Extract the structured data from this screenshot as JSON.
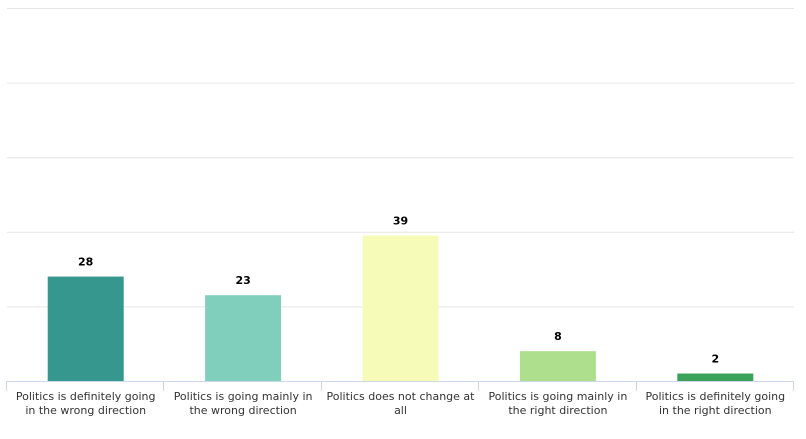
{
  "chart_data": {
    "type": "bar",
    "title": "",
    "xlabel": "",
    "ylabel": "",
    "ylim": [
      0,
      100
    ],
    "grid": true,
    "categories": [
      "Politics is definitely going in the wrong direction",
      "Politics is going mainly in the wrong direction",
      "Politics does not change at all",
      "Politics is going mainly in the right direction",
      "Politics is definitely going in the right direction"
    ],
    "values": [
      28,
      23,
      39,
      8,
      2
    ],
    "colors": [
      "#36978f",
      "#80cfbd",
      "#f7fbb8",
      "#addf8d",
      "#3aa25a"
    ]
  }
}
